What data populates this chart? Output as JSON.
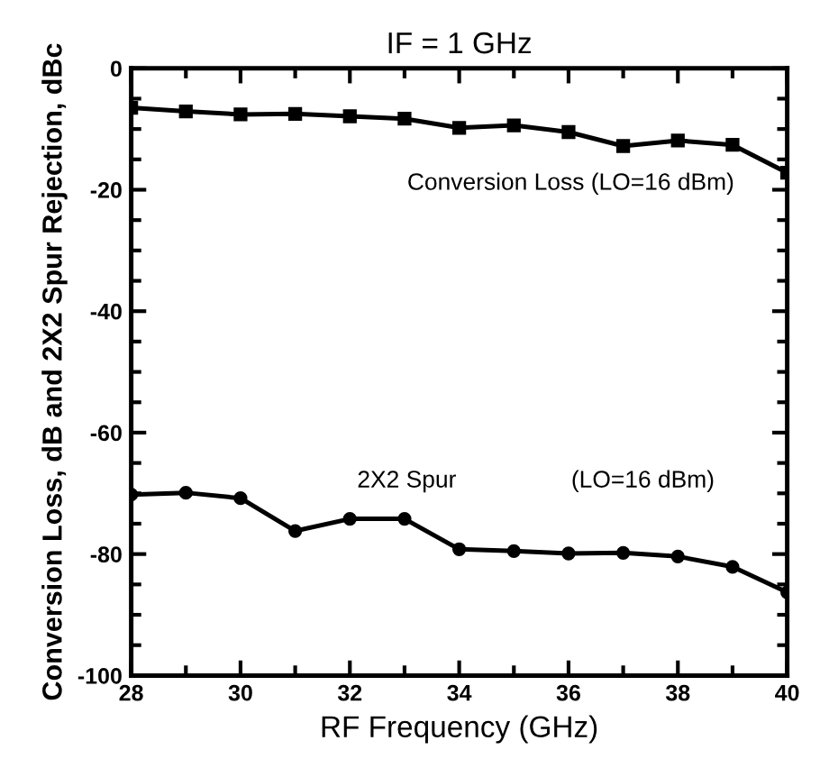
{
  "chart_data": {
    "type": "line",
    "title": "IF = 1 GHz",
    "xlabel": "RF Frequency (GHz)",
    "ylabel": "Conversion Loss, dB and 2X2 Spur Rejection, dBc",
    "x": [
      28,
      29,
      30,
      31,
      32,
      33,
      34,
      35,
      36,
      37,
      38,
      39,
      40
    ],
    "series": [
      {
        "color": "#000000",
        "marker": "square",
        "values": [
          -6.5,
          -7.1,
          -7.6,
          -7.5,
          -7.9,
          -8.3,
          -9.8,
          -9.4,
          -10.5,
          -12.8,
          -11.9,
          -12.6,
          -17.2
        ]
      },
      {
        "color": "#000000",
        "marker": "circle",
        "values": [
          -70.2,
          -69.9,
          -70.8,
          -76.2,
          -74.2,
          -74.2,
          -79.2,
          -79.5,
          -79.9,
          -79.8,
          -80.4,
          -82.1,
          -86.3
        ]
      }
    ],
    "xlim": [
      28,
      40
    ],
    "xticks": [
      28,
      30,
      32,
      34,
      36,
      38,
      40
    ],
    "ylim": [
      -100,
      0
    ],
    "yticks": [
      -100,
      -80,
      -60,
      -40,
      -20,
      0
    ],
    "grid": false,
    "legend": false,
    "line_style": "solid",
    "annotations": [
      "Conversion Loss (LO=16 dBm)",
      "2X2 Spur",
      "(LO=16 dBm)"
    ]
  }
}
